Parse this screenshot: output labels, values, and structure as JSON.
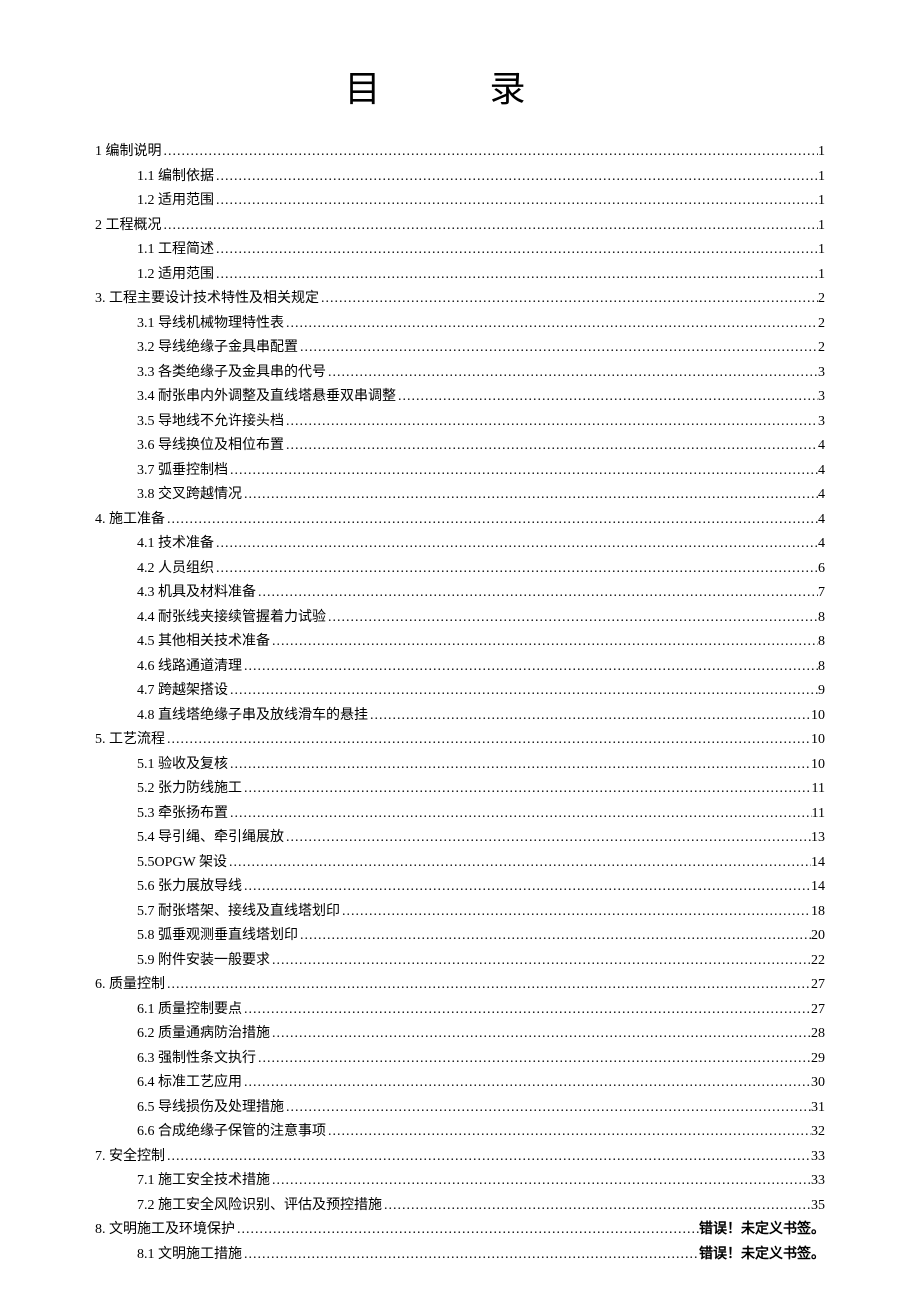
{
  "title": "目 录",
  "toc": [
    {
      "level": 1,
      "label": "1 编制说明",
      "page": "1"
    },
    {
      "level": 2,
      "label": "1.1 编制依据",
      "page": "1"
    },
    {
      "level": 2,
      "label": "1.2 适用范围",
      "page": "1"
    },
    {
      "level": 1,
      "label": "2 工程概况",
      "page": "1"
    },
    {
      "level": 2,
      "label": "1.1 工程简述",
      "page": "1"
    },
    {
      "level": 2,
      "label": "1.2 适用范围",
      "page": "1"
    },
    {
      "level": 1,
      "label": "3. 工程主要设计技术特性及相关规定",
      "page": "2"
    },
    {
      "level": 2,
      "label": "3.1 导线机械物理特性表",
      "page": "2"
    },
    {
      "level": 2,
      "label": "3.2 导线绝缘子金具串配置",
      "page": "2"
    },
    {
      "level": 2,
      "label": "3.3 各类绝缘子及金具串的代号",
      "page": "3"
    },
    {
      "level": 2,
      "label": "3.4 耐张串内外调整及直线塔悬垂双串调整",
      "page": "3"
    },
    {
      "level": 2,
      "label": "3.5 导地线不允许接头档",
      "page": "3"
    },
    {
      "level": 2,
      "label": "3.6 导线换位及相位布置",
      "page": "4"
    },
    {
      "level": 2,
      "label": "3.7 弧垂控制档",
      "page": "4"
    },
    {
      "level": 2,
      "label": "3.8 交叉跨越情况",
      "page": "4"
    },
    {
      "level": 1,
      "label": "4. 施工准备",
      "page": "4"
    },
    {
      "level": 2,
      "label": "4.1 技术准备",
      "page": "4"
    },
    {
      "level": 2,
      "label": "4.2 人员组织",
      "page": "6"
    },
    {
      "level": 2,
      "label": "4.3 机具及材料准备",
      "page": "7"
    },
    {
      "level": 2,
      "label": "4.4 耐张线夹接续管握着力试验",
      "page": "8"
    },
    {
      "level": 2,
      "label": "4.5 其他相关技术准备",
      "page": "8"
    },
    {
      "level": 2,
      "label": "4.6 线路通道清理",
      "page": "8"
    },
    {
      "level": 2,
      "label": "4.7 跨越架搭设",
      "page": "9"
    },
    {
      "level": 2,
      "label": "4.8 直线塔绝缘子串及放线滑车的悬挂",
      "page": "10"
    },
    {
      "level": 1,
      "label": "5. 工艺流程",
      "page": "10"
    },
    {
      "level": 2,
      "label": "5.1 验收及复核",
      "page": "10"
    },
    {
      "level": 2,
      "label": "5.2 张力防线施工",
      "page": "11"
    },
    {
      "level": 2,
      "label": "5.3 牵张扬布置",
      "page": "11"
    },
    {
      "level": 2,
      "label": "5.4 导引绳、牵引绳展放",
      "page": "13"
    },
    {
      "level": 2,
      "label": "5.5OPGW 架设",
      "page": "14"
    },
    {
      "level": 2,
      "label": "5.6 张力展放导线",
      "page": "14"
    },
    {
      "level": 2,
      "label": "5.7 耐张塔架、接线及直线塔划印",
      "page": "18"
    },
    {
      "level": 2,
      "label": "5.8 弧垂观测垂直线塔划印",
      "page": "20"
    },
    {
      "level": 2,
      "label": "5.9 附件安装一般要求",
      "page": "22"
    },
    {
      "level": 1,
      "label": "6. 质量控制",
      "page": "27"
    },
    {
      "level": 2,
      "label": "6.1 质量控制要点",
      "page": "27"
    },
    {
      "level": 2,
      "label": "6.2 质量通病防治措施",
      "page": "28"
    },
    {
      "level": 2,
      "label": "6.3 强制性条文执行",
      "page": "29"
    },
    {
      "level": 2,
      "label": "6.4 标准工艺应用",
      "page": "30"
    },
    {
      "level": 2,
      "label": "6.5 导线损伤及处理措施",
      "page": "31"
    },
    {
      "level": 2,
      "label": "6.6 合成绝缘子保管的注意事项",
      "page": "32"
    },
    {
      "level": 1,
      "label": "7. 安全控制",
      "page": "33"
    },
    {
      "level": 2,
      "label": "7.1 施工安全技术措施",
      "page": "33"
    },
    {
      "level": 2,
      "label": "7.2 施工安全风险识别、评估及预控措施",
      "page": "35"
    },
    {
      "level": 1,
      "label": "8. 文明施工及环境保护",
      "page": "错误！未定义书签。",
      "error": true
    },
    {
      "level": 2,
      "label": "8.1 文明施工措施",
      "page": "错误！未定义书签。",
      "error": true
    }
  ],
  "colors": {
    "text": "#000000",
    "background": "#ffffff"
  },
  "fonts": {
    "body_size": 14,
    "title_size": 36,
    "line_height": 24.5
  }
}
